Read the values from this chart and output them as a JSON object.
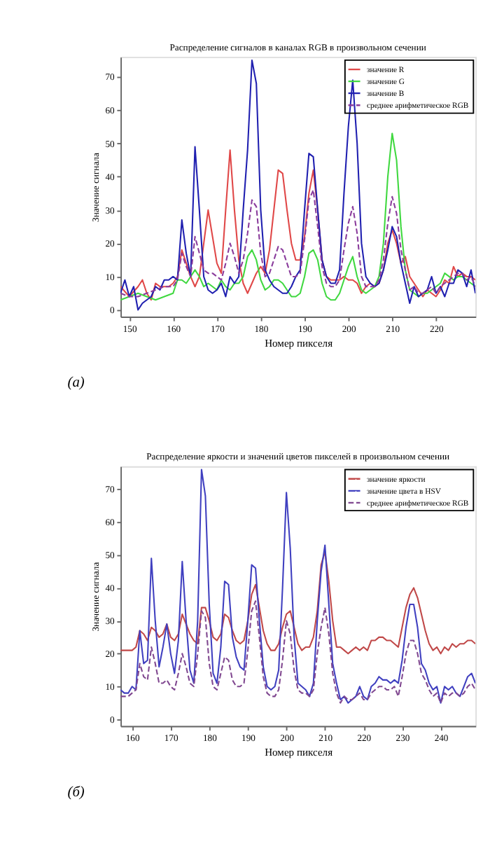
{
  "chart_data": [
    {
      "type": "line",
      "title": "Распределение сигналов в каналах RGB  в произвольном сечении",
      "xlabel": "Номер пикселя",
      "ylabel": "Значение сигнала",
      "annotations": [
        "(а)"
      ],
      "xlim": [
        148,
        229
      ],
      "ylim": [
        -2,
        76
      ],
      "xticks": [
        150,
        160,
        170,
        180,
        190,
        200,
        210,
        220
      ],
      "yticks": [
        0,
        10,
        20,
        30,
        40,
        50,
        60,
        70
      ],
      "grid": false,
      "legend": "top right",
      "series": [
        {
          "name": "значение R",
          "color": "#e04848",
          "line_style": "solid",
          "x": [
            148,
            150,
            152,
            153,
            154,
            155,
            156,
            157,
            158,
            159,
            160,
            161,
            162,
            163,
            164,
            165,
            166,
            167,
            168,
            169,
            170,
            171,
            172,
            173,
            174,
            175,
            176,
            177,
            178,
            179,
            180,
            181,
            182,
            183,
            184,
            185,
            186,
            187,
            188,
            189,
            190,
            191,
            192,
            193,
            194,
            195,
            196,
            197,
            198,
            199,
            200,
            201,
            202,
            203,
            204,
            205,
            206,
            207,
            208,
            209,
            210,
            211,
            212,
            213,
            214,
            215,
            216,
            217,
            218,
            219,
            220,
            221,
            222,
            223,
            224,
            225,
            226,
            227,
            228,
            229
          ],
          "values": [
            7,
            4,
            7,
            9,
            5,
            3,
            8,
            7,
            7,
            7,
            8,
            10,
            18,
            14,
            10,
            7,
            10,
            20,
            30,
            22,
            14,
            11,
            30,
            48,
            30,
            15,
            8,
            5,
            8,
            11,
            13,
            11,
            18,
            30,
            42,
            41,
            30,
            20,
            15,
            15,
            22,
            35,
            42,
            30,
            15,
            10,
            9,
            9,
            9,
            10,
            9,
            9,
            8,
            5,
            7,
            8,
            7,
            8,
            12,
            20,
            24,
            20,
            14,
            16,
            10,
            8,
            6,
            4,
            6,
            5,
            4,
            6,
            9,
            8,
            13,
            10,
            11,
            10,
            10,
            9
          ]
        },
        {
          "name": "значение G",
          "color": "#40d840",
          "line_style": "solid",
          "x": [
            148,
            150,
            152,
            154,
            156,
            158,
            160,
            161,
            162,
            163,
            164,
            165,
            166,
            167,
            168,
            169,
            170,
            171,
            172,
            173,
            174,
            175,
            176,
            177,
            178,
            179,
            180,
            181,
            182,
            183,
            184,
            185,
            186,
            187,
            188,
            189,
            190,
            191,
            192,
            193,
            194,
            195,
            196,
            197,
            198,
            199,
            200,
            201,
            202,
            203,
            204,
            205,
            206,
            207,
            208,
            209,
            210,
            211,
            212,
            213,
            214,
            215,
            216,
            217,
            218,
            219,
            220,
            221,
            222,
            223,
            224,
            225,
            226,
            227,
            228,
            229
          ],
          "values": [
            3,
            4,
            5,
            4,
            3,
            4,
            5,
            9,
            9,
            8,
            10,
            12,
            10,
            7,
            8,
            7,
            6,
            9,
            7,
            6,
            8,
            8,
            10,
            16,
            18,
            15,
            9,
            6,
            7,
            9,
            9,
            8,
            6,
            4,
            4,
            5,
            10,
            17,
            18,
            15,
            8,
            4,
            3,
            3,
            5,
            9,
            13,
            16,
            10,
            6,
            5,
            6,
            7,
            10,
            20,
            40,
            53,
            45,
            25,
            12,
            6,
            5,
            4,
            5,
            5,
            6,
            7,
            8,
            11,
            10,
            9,
            10,
            10,
            9,
            8,
            7
          ]
        },
        {
          "name": "значение B",
          "color": "#2020b0",
          "line_style": "solid",
          "x": [
            148,
            149,
            150,
            151,
            152,
            153,
            155,
            156,
            157,
            158,
            159,
            160,
            161,
            162,
            163,
            164,
            165,
            166,
            167,
            168,
            169,
            170,
            171,
            172,
            173,
            174,
            175,
            176,
            177,
            178,
            179,
            180,
            181,
            182,
            183,
            184,
            185,
            186,
            187,
            188,
            189,
            190,
            191,
            192,
            193,
            194,
            195,
            196,
            197,
            198,
            199,
            200,
            201,
            202,
            203,
            204,
            205,
            206,
            207,
            208,
            209,
            210,
            211,
            212,
            213,
            214,
            215,
            216,
            217,
            218,
            219,
            220,
            221,
            222,
            223,
            224,
            225,
            226,
            227,
            228,
            229
          ],
          "values": [
            5,
            9,
            4,
            7,
            0,
            2,
            4,
            7,
            6,
            9,
            9,
            10,
            9,
            27,
            17,
            10,
            49,
            30,
            10,
            6,
            5,
            6,
            8,
            4,
            10,
            8,
            10,
            30,
            48,
            75,
            68,
            30,
            12,
            9,
            7,
            6,
            5,
            5,
            7,
            10,
            12,
            30,
            47,
            46,
            30,
            15,
            10,
            8,
            8,
            12,
            35,
            55,
            69,
            50,
            20,
            10,
            8,
            7,
            8,
            12,
            18,
            25,
            22,
            14,
            8,
            2,
            7,
            4,
            5,
            6,
            10,
            5,
            7,
            4,
            8,
            8,
            12,
            11,
            7,
            12,
            5
          ]
        },
        {
          "name": "среднее арифметическое RGB",
          "color": "#8a3c9c",
          "line_style": "dashed",
          "x": [
            148,
            150,
            152,
            154,
            156,
            158,
            160,
            161,
            162,
            163,
            164,
            165,
            166,
            167,
            168,
            169,
            170,
            171,
            172,
            173,
            174,
            175,
            176,
            177,
            178,
            179,
            180,
            181,
            182,
            183,
            184,
            185,
            186,
            187,
            188,
            189,
            190,
            191,
            192,
            193,
            194,
            195,
            196,
            197,
            198,
            199,
            200,
            201,
            202,
            203,
            204,
            205,
            206,
            207,
            208,
            209,
            210,
            211,
            212,
            213,
            214,
            215,
            216,
            217,
            218,
            219,
            220,
            221,
            222,
            223,
            224,
            225,
            226,
            227,
            228,
            229
          ],
          "values": [
            5,
            4,
            4,
            5,
            6,
            7,
            7,
            9,
            17,
            13,
            10,
            22,
            17,
            12,
            11,
            11,
            10,
            9,
            14,
            20,
            16,
            11,
            15,
            23,
            33,
            31,
            17,
            10,
            11,
            15,
            19,
            18,
            14,
            10,
            10,
            11,
            21,
            33,
            36,
            25,
            13,
            8,
            7,
            7,
            9,
            18,
            26,
            31,
            23,
            10,
            7,
            7,
            7,
            9,
            15,
            26,
            34,
            29,
            18,
            12,
            6,
            7,
            5,
            5,
            6,
            7,
            5,
            7,
            8,
            9,
            10,
            11,
            11,
            9,
            10,
            7
          ]
        }
      ]
    },
    {
      "type": "line",
      "title": "Распределение яркости и значений цветов пикселей в произвольном сечении",
      "xlabel": "Номер пикселя",
      "ylabel": "Значение сигнала",
      "annotations": [
        "(б)"
      ],
      "xlim": [
        157,
        249
      ],
      "ylim": [
        -2,
        77
      ],
      "xticks": [
        160,
        170,
        180,
        190,
        200,
        210,
        220,
        230,
        240
      ],
      "yticks": [
        0,
        10,
        20,
        30,
        40,
        50,
        60,
        70
      ],
      "grid": false,
      "legend": "top right",
      "series": [
        {
          "name": "значение яркости",
          "color": "#c04848",
          "line_style": "solid",
          "x": [
            157,
            160,
            161,
            162,
            163,
            164,
            165,
            166,
            167,
            168,
            169,
            170,
            171,
            172,
            173,
            174,
            175,
            176,
            177,
            178,
            179,
            180,
            181,
            182,
            183,
            184,
            185,
            186,
            187,
            188,
            189,
            190,
            191,
            192,
            193,
            194,
            195,
            196,
            197,
            198,
            199,
            200,
            201,
            202,
            203,
            204,
            205,
            206,
            207,
            208,
            209,
            210,
            211,
            212,
            213,
            214,
            215,
            216,
            217,
            218,
            219,
            220,
            221,
            222,
            223,
            224,
            225,
            226,
            227,
            228,
            229,
            230,
            231,
            232,
            233,
            234,
            235,
            236,
            237,
            238,
            239,
            240,
            241,
            242,
            243,
            244,
            245,
            246,
            247,
            248,
            249
          ],
          "values": [
            21,
            21,
            22,
            27,
            26,
            24,
            28,
            27,
            25,
            26,
            29,
            25,
            24,
            26,
            32,
            29,
            26,
            24,
            23,
            34,
            34,
            30,
            25,
            24,
            26,
            32,
            31,
            27,
            24,
            23,
            24,
            30,
            38,
            41,
            34,
            27,
            23,
            21,
            21,
            23,
            28,
            32,
            33,
            28,
            23,
            21,
            22,
            22,
            25,
            33,
            47,
            51,
            42,
            30,
            22,
            22,
            21,
            20,
            21,
            22,
            21,
            22,
            21,
            24,
            24,
            25,
            25,
            24,
            24,
            23,
            22,
            28,
            34,
            38,
            40,
            37,
            32,
            27,
            23,
            21,
            22,
            20,
            22,
            21,
            23,
            22,
            23,
            23,
            24,
            24,
            23
          ]
        },
        {
          "name": "значение цвета в HSV",
          "color": "#4040c0",
          "line_style": "solid",
          "x": [
            157,
            158,
            159,
            160,
            161,
            162,
            163,
            164,
            165,
            166,
            167,
            168,
            169,
            170,
            171,
            172,
            173,
            174,
            175,
            176,
            177,
            178,
            179,
            180,
            181,
            182,
            183,
            184,
            185,
            186,
            187,
            188,
            189,
            190,
            191,
            192,
            193,
            194,
            195,
            196,
            197,
            198,
            199,
            200,
            201,
            202,
            203,
            204,
            205,
            206,
            207,
            208,
            209,
            210,
            211,
            212,
            213,
            214,
            215,
            216,
            217,
            218,
            219,
            220,
            221,
            222,
            223,
            224,
            225,
            226,
            227,
            228,
            229,
            230,
            231,
            232,
            233,
            234,
            235,
            236,
            237,
            238,
            239,
            240,
            241,
            242,
            243,
            244,
            245,
            246,
            247,
            248,
            249
          ],
          "values": [
            9,
            8,
            8,
            10,
            9,
            27,
            17,
            18,
            49,
            30,
            16,
            22,
            29,
            20,
            14,
            24,
            48,
            30,
            15,
            11,
            30,
            76,
            68,
            35,
            14,
            11,
            22,
            42,
            41,
            25,
            19,
            16,
            15,
            30,
            47,
            46,
            30,
            16,
            10,
            9,
            10,
            15,
            40,
            69,
            52,
            25,
            11,
            10,
            9,
            7,
            11,
            30,
            45,
            53,
            35,
            17,
            11,
            6,
            7,
            5,
            6,
            7,
            10,
            7,
            6,
            10,
            11,
            13,
            12,
            12,
            11,
            12,
            11,
            18,
            28,
            35,
            35,
            28,
            17,
            15,
            11,
            9,
            10,
            5,
            10,
            9,
            10,
            8,
            7,
            10,
            13,
            14,
            11
          ]
        },
        {
          "name": "среднее арифметическое RGB",
          "color": "#804890",
          "line_style": "dashed",
          "x": [
            157,
            158,
            159,
            160,
            161,
            162,
            163,
            164,
            165,
            166,
            167,
            168,
            169,
            170,
            171,
            172,
            173,
            174,
            175,
            176,
            177,
            178,
            179,
            180,
            181,
            182,
            183,
            184,
            185,
            186,
            187,
            188,
            189,
            190,
            191,
            192,
            193,
            194,
            195,
            196,
            197,
            198,
            199,
            200,
            201,
            202,
            203,
            204,
            205,
            206,
            207,
            208,
            209,
            210,
            211,
            212,
            213,
            214,
            215,
            216,
            217,
            218,
            219,
            220,
            221,
            222,
            223,
            224,
            225,
            226,
            227,
            228,
            229,
            230,
            231,
            232,
            233,
            234,
            235,
            236,
            237,
            238,
            239,
            240,
            241,
            242,
            243,
            244,
            245,
            246,
            247,
            248,
            249
          ],
          "values": [
            7,
            7,
            7,
            8,
            9,
            17,
            13,
            12,
            22,
            17,
            11,
            11,
            12,
            10,
            9,
            14,
            20,
            16,
            11,
            10,
            20,
            33,
            31,
            17,
            10,
            9,
            14,
            19,
            18,
            12,
            10,
            10,
            11,
            21,
            33,
            36,
            25,
            13,
            8,
            7,
            7,
            9,
            18,
            30,
            26,
            15,
            9,
            8,
            8,
            7,
            9,
            20,
            28,
            34,
            26,
            14,
            8,
            5,
            7,
            6,
            6,
            7,
            8,
            6,
            6,
            8,
            9,
            10,
            10,
            9,
            9,
            10,
            7,
            13,
            20,
            24,
            24,
            20,
            14,
            12,
            9,
            7,
            8,
            5,
            8,
            7,
            8,
            8,
            7,
            8,
            10,
            11,
            9
          ]
        }
      ]
    }
  ]
}
